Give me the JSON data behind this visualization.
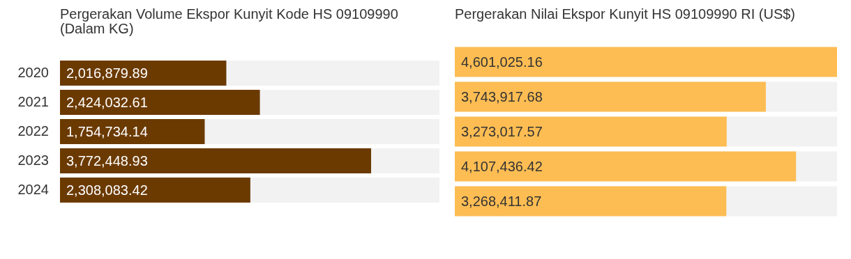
{
  "chart_data": [
    {
      "type": "bar",
      "orientation": "horizontal",
      "title": "Pergerakan Volume Ekspor Kunyit Kode HS 09109990 (Dalam KG)",
      "categories": [
        "2020",
        "2021",
        "2022",
        "2023",
        "2024"
      ],
      "values": [
        2016879.89,
        2424032.61,
        1754734.14,
        3772448.93,
        2308083.42
      ],
      "value_labels": [
        "2,016,879.89",
        "2,424,032.61",
        "1,754,734.14",
        "3,772,448.93",
        "2,308,083.42"
      ],
      "color": "#6b3a00",
      "xlim": [
        0,
        4601025.16
      ],
      "tick_labels": "y",
      "grid": false,
      "legend": false
    },
    {
      "type": "bar",
      "orientation": "horizontal",
      "title": "Pergerakan Nilai Ekspor Kunyit HS 09109990 RI (US$)",
      "categories": [
        "2020",
        "2021",
        "2022",
        "2023",
        "2024"
      ],
      "values": [
        4601025.16,
        3743917.68,
        3273017.57,
        4107436.42,
        3268411.87
      ],
      "value_labels": [
        "4,601,025.16",
        "3,743,917.68",
        "3,273,017.57",
        "4,107,436.42",
        "3,268,411.87"
      ],
      "color": "#fdbd53",
      "xlim": [
        0,
        4601025.16
      ],
      "tick_labels": false,
      "grid": false,
      "legend": false
    }
  ]
}
